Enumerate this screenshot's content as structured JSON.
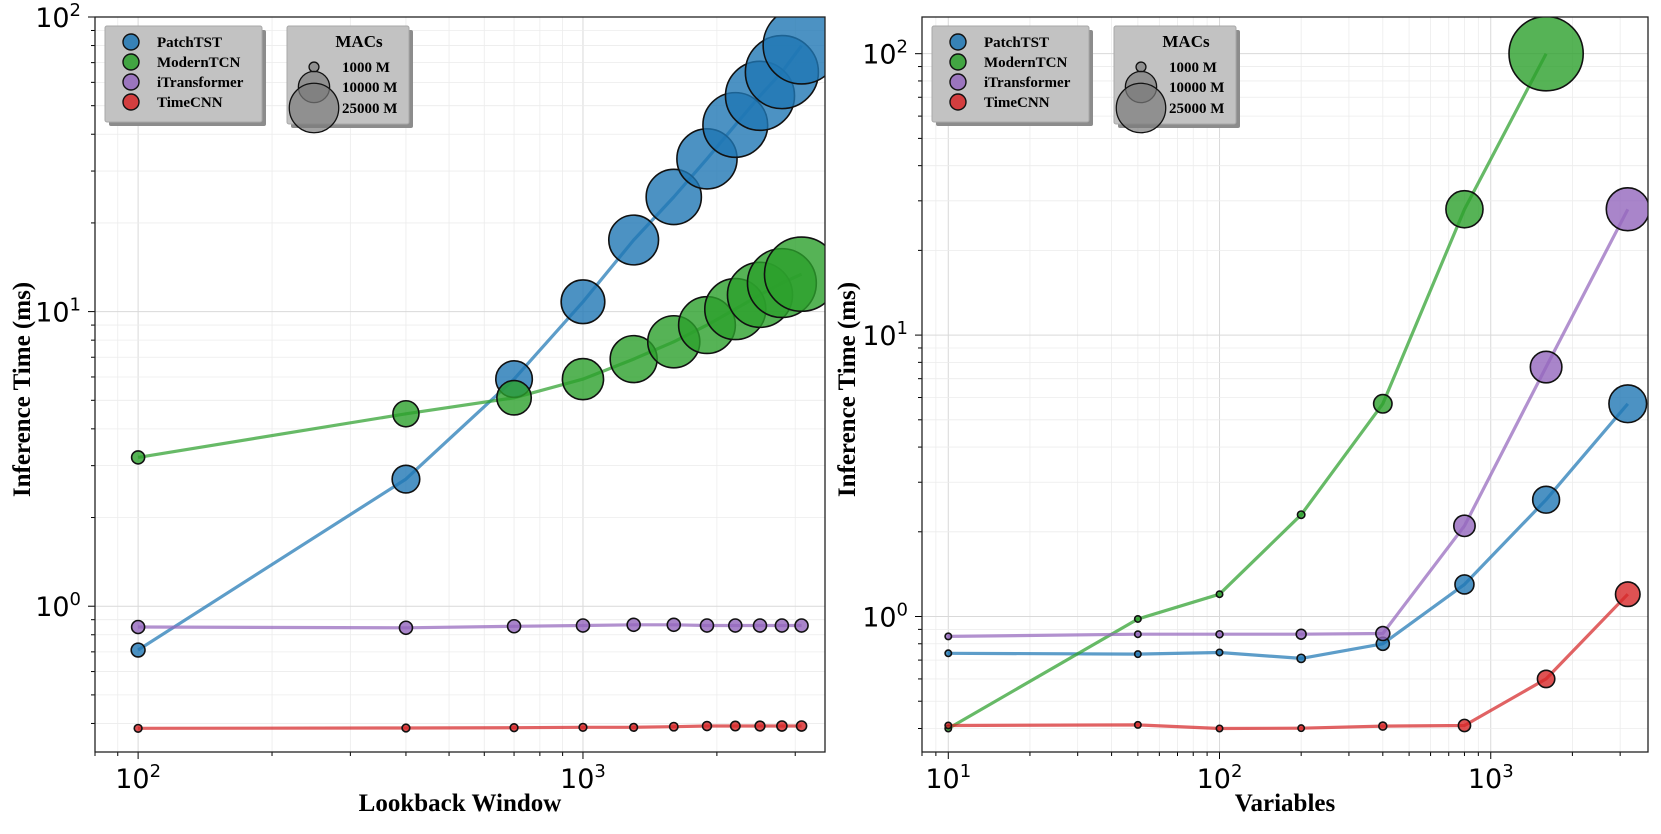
{
  "chart_data": [
    {
      "type": "scatter",
      "xlabel": "Lookback Window",
      "ylabel": "Inference Time (ms)",
      "xscale": "log",
      "yscale": "log",
      "xlim": [
        80,
        3500
      ],
      "ylim": [
        0.32,
        100
      ],
      "x_ticks": [
        {
          "value": 100,
          "base": "10",
          "exp": "2"
        },
        {
          "value": 1000,
          "base": "10",
          "exp": "3"
        }
      ],
      "y_ticks": [
        {
          "value": 1,
          "base": "10",
          "exp": "0"
        },
        {
          "value": 10,
          "base": "10",
          "exp": "1"
        },
        {
          "value": 100,
          "base": "10",
          "exp": "2"
        }
      ],
      "grid": true,
      "series": [
        {
          "name": "PatchTST",
          "color": "#1f77b4",
          "x": [
            100,
            400,
            700,
            1000,
            1300,
            1600,
            1900,
            2200,
            2500,
            2800,
            3100
          ],
          "values": [
            0.71,
            2.7,
            5.9,
            10.8,
            17.5,
            24.5,
            33,
            43,
            54,
            65,
            80
          ],
          "macs": [
            900,
            3600,
            6300,
            9000,
            11700,
            14400,
            17100,
            19800,
            22500,
            25200,
            27900
          ]
        },
        {
          "name": "ModernTCN",
          "color": "#2ca02c",
          "x": [
            100,
            400,
            700,
            1000,
            1300,
            1600,
            1900,
            2200,
            2500,
            2800,
            3100
          ],
          "values": [
            3.2,
            4.5,
            5.1,
            5.9,
            6.9,
            7.9,
            9.0,
            10.2,
            11.4,
            12.5,
            13.4
          ],
          "macs": [
            800,
            3200,
            5600,
            8000,
            10400,
            12800,
            15200,
            17600,
            20000,
            22400,
            26000
          ]
        },
        {
          "name": "iTransformer",
          "color": "#9467bd",
          "x": [
            100,
            400,
            700,
            1000,
            1300,
            1600,
            1900,
            2200,
            2500,
            2800,
            3100
          ],
          "values": [
            0.85,
            0.845,
            0.855,
            0.86,
            0.865,
            0.865,
            0.86,
            0.86,
            0.86,
            0.86,
            0.86
          ],
          "macs": [
            800,
            800,
            800,
            800,
            800,
            800,
            800,
            800,
            800,
            800,
            800
          ]
        },
        {
          "name": "TimeCNN",
          "color": "#d62728",
          "x": [
            100,
            400,
            700,
            1000,
            1300,
            1600,
            1900,
            2200,
            2500,
            2800,
            3100
          ],
          "values": [
            0.385,
            0.386,
            0.387,
            0.388,
            0.388,
            0.39,
            0.392,
            0.392,
            0.392,
            0.392,
            0.392
          ],
          "macs": [
            280,
            280,
            280,
            280,
            280,
            330,
            380,
            420,
            450,
            480,
            480
          ]
        }
      ],
      "legend": {
        "position": "top-left",
        "entries": [
          "PatchTST",
          "ModernTCN",
          "iTransformer",
          "TimeCNN"
        ]
      },
      "size_legend": {
        "title": "MACs",
        "entries": [
          {
            "label": "1000 M",
            "macs": 1000
          },
          {
            "label": "10000 M",
            "macs": 10000
          },
          {
            "label": "25000 M",
            "macs": 25000
          }
        ]
      }
    },
    {
      "type": "scatter",
      "xlabel": "Variables",
      "ylabel": "Inference Time (ms)",
      "xscale": "log",
      "yscale": "log",
      "xlim": [
        8,
        3800
      ],
      "ylim": [
        0.33,
        135
      ],
      "x_ticks": [
        {
          "value": 10,
          "base": "10",
          "exp": "1"
        },
        {
          "value": 100,
          "base": "10",
          "exp": "2"
        },
        {
          "value": 1000,
          "base": "10",
          "exp": "3"
        }
      ],
      "y_ticks": [
        {
          "value": 1,
          "base": "10",
          "exp": "0"
        },
        {
          "value": 10,
          "base": "10",
          "exp": "1"
        },
        {
          "value": 100,
          "base": "10",
          "exp": "2"
        }
      ],
      "grid": true,
      "series": [
        {
          "name": "PatchTST",
          "color": "#1f77b4",
          "x": [
            10,
            50,
            100,
            200,
            400,
            800,
            1600,
            3200
          ],
          "values": [
            0.74,
            0.735,
            0.745,
            0.71,
            0.8,
            1.3,
            2.6,
            5.7
          ],
          "macs": [
            10,
            80,
            150,
            320,
            800,
            1700,
            3400,
            6700
          ]
        },
        {
          "name": "ModernTCN",
          "color": "#2ca02c",
          "x": [
            10,
            50,
            100,
            200,
            400,
            800,
            1600
          ],
          "values": [
            0.4,
            0.98,
            1.2,
            2.3,
            5.7,
            28,
            100
          ],
          "macs": [
            10,
            60,
            130,
            260,
            1600,
            6500,
            26000
          ]
        },
        {
          "name": "iTransformer",
          "color": "#9467bd",
          "x": [
            10,
            50,
            100,
            200,
            400,
            800,
            1600,
            3200
          ],
          "values": [
            0.85,
            0.865,
            0.865,
            0.865,
            0.87,
            2.1,
            7.7,
            28
          ],
          "macs": [
            10,
            50,
            230,
            460,
            920,
            2150,
            4700,
            8700
          ]
        },
        {
          "name": "TimeCNN",
          "color": "#d62728",
          "x": [
            10,
            50,
            100,
            200,
            400,
            800,
            1600,
            3200
          ],
          "values": [
            0.41,
            0.412,
            0.4,
            0.401,
            0.408,
            0.41,
            0.6,
            1.2
          ],
          "macs": [
            10,
            40,
            90,
            150,
            300,
            700,
            1420,
            2840
          ]
        }
      ],
      "legend": {
        "position": "top-left",
        "entries": [
          "PatchTST",
          "ModernTCN",
          "iTransformer",
          "TimeCNN"
        ]
      },
      "size_legend": {
        "title": "MACs",
        "entries": [
          {
            "label": "1000 M",
            "macs": 1000
          },
          {
            "label": "10000 M",
            "macs": 10000
          },
          {
            "label": "25000 M",
            "macs": 25000
          }
        ]
      }
    }
  ]
}
